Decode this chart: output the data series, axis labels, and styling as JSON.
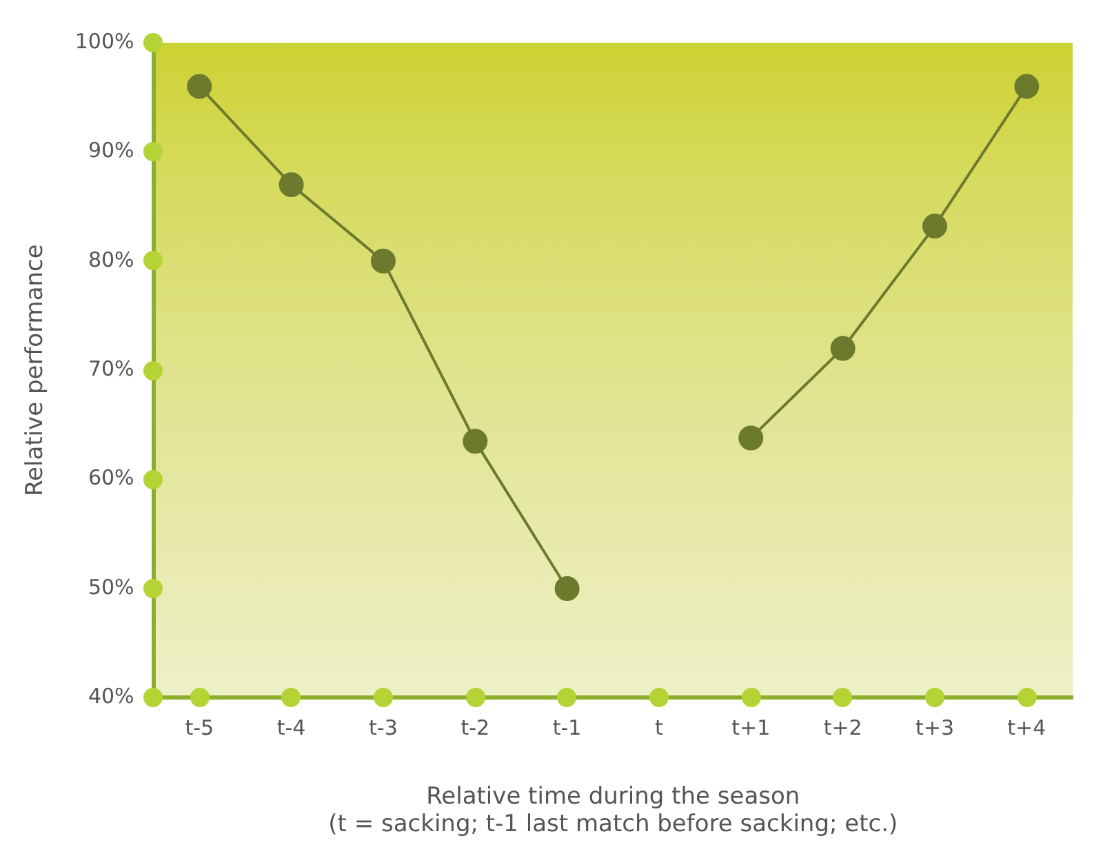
{
  "chart_data": {
    "type": "line",
    "xlabel": "Relative time during the season\n(t = sacking; t-1 last match before sacking; etc.)",
    "ylabel": "Relative performance",
    "categories": [
      "t-5",
      "t-4",
      "t-3",
      "t-2",
      "t-1",
      "t",
      "t+1",
      "t+2",
      "t+3",
      "t+4"
    ],
    "series": [
      {
        "color": "#6b7a2c",
        "values": [
          96,
          87,
          80,
          63.5,
          50,
          null,
          63.8,
          72,
          83.2,
          96
        ]
      }
    ],
    "ylim": [
      40,
      100
    ],
    "yticks": [
      {
        "value": 40,
        "label": "40%"
      },
      {
        "value": 50,
        "label": "50%"
      },
      {
        "value": 60,
        "label": "60%"
      },
      {
        "value": 70,
        "label": "70%"
      },
      {
        "value": 80,
        "label": "80%"
      },
      {
        "value": 90,
        "label": "90%"
      },
      {
        "value": 100,
        "label": "100%"
      }
    ],
    "grid": false,
    "legend": false,
    "marker": "circle",
    "line_style": "solid"
  }
}
